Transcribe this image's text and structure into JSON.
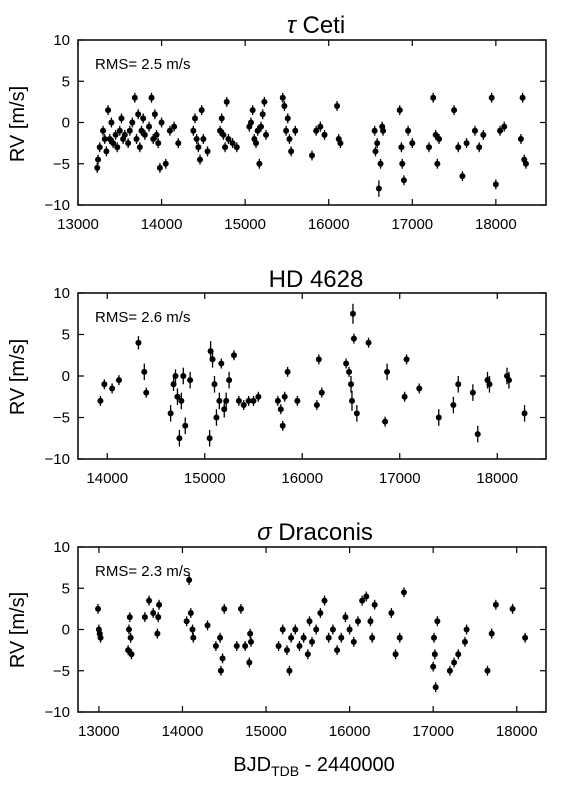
{
  "xlabel": {
    "main": "BJD",
    "sub": "TDB",
    "suffix": " - 2440000"
  },
  "chart_data": [
    {
      "type": "scatter",
      "title": {
        "symbol": "τ",
        "rest": " Ceti"
      },
      "annotation": "RMS= 2.5 m/s",
      "ylabel": "RV [m/s]",
      "xlim": [
        13000,
        18600
      ],
      "ylim": [
        -10,
        10
      ],
      "xticks": [
        13000,
        14000,
        15000,
        16000,
        17000,
        18000
      ],
      "yticks": [
        -10,
        -5,
        0,
        5,
        10
      ],
      "x": [
        13230,
        13240,
        13260,
        13300,
        13320,
        13340,
        13360,
        13380,
        13400,
        13420,
        13450,
        13470,
        13500,
        13520,
        13540,
        13560,
        13600,
        13620,
        13650,
        13680,
        13700,
        13720,
        13740,
        13760,
        13780,
        13800,
        13850,
        13880,
        13900,
        13920,
        13940,
        13960,
        13980,
        14000,
        14050,
        14100,
        14150,
        14200,
        14380,
        14400,
        14420,
        14440,
        14460,
        14480,
        14500,
        14550,
        14700,
        14720,
        14740,
        14760,
        14780,
        14800,
        14850,
        14900,
        15050,
        15070,
        15090,
        15110,
        15130,
        15150,
        15170,
        15190,
        15210,
        15230,
        15250,
        15450,
        15470,
        15490,
        15510,
        15530,
        15550,
        15600,
        15800,
        15850,
        15900,
        15950,
        16100,
        16120,
        16140,
        16550,
        16560,
        16580,
        16600,
        16620,
        16640,
        16650,
        16850,
        16870,
        16880,
        16900,
        16950,
        17000,
        17200,
        17250,
        17280,
        17300,
        17320,
        17500,
        17550,
        17600,
        17650,
        17750,
        17800,
        17850,
        17950,
        18000,
        18050,
        18100,
        18300,
        18320,
        18340,
        18360
      ],
      "y": [
        -5.5,
        -4.5,
        -3,
        -1,
        -2,
        -3.5,
        1.5,
        -2,
        0,
        -2.5,
        -1.5,
        -3,
        -1,
        0.5,
        -2,
        -1.5,
        -2.5,
        -1,
        0,
        3,
        -2,
        1,
        -3,
        -1,
        0.5,
        -1.5,
        -0.5,
        3,
        -2,
        1,
        -1.5,
        -2.5,
        -5.5,
        0,
        -5,
        -1,
        -0.5,
        -2.5,
        -1,
        0.5,
        -2,
        -3,
        -4.5,
        1.5,
        -2,
        -3.5,
        -1,
        0.5,
        -1.5,
        -3,
        2.5,
        -2,
        -2.5,
        -3,
        -0.5,
        0,
        1.5,
        -2,
        -2.5,
        -1,
        -5,
        -0.5,
        1,
        2.5,
        -1.5,
        3,
        2,
        -1,
        0.5,
        -2,
        -3.5,
        -1,
        -4,
        -1,
        -0.5,
        -1.5,
        2,
        -2,
        -2.5,
        -1,
        -3.5,
        -2.5,
        -8,
        -5,
        -0.5,
        -1,
        1.5,
        -3,
        -5,
        -7,
        -1,
        -2.5,
        -3,
        3,
        -1.5,
        -5,
        -2,
        1.5,
        -3,
        -6.5,
        -2.5,
        -1,
        -3,
        -1.5,
        3,
        -7.5,
        -1,
        -0.5,
        -2,
        3,
        -4.5,
        -5
      ],
      "yerr": [
        0.6,
        0.6,
        0.6,
        0.6,
        0.6,
        0.6,
        0.6,
        0.6,
        0.6,
        0.6,
        0.6,
        0.6,
        0.6,
        0.6,
        0.6,
        0.6,
        0.6,
        0.6,
        0.6,
        0.6,
        0.6,
        0.6,
        0.6,
        0.6,
        0.6,
        0.6,
        0.6,
        0.6,
        0.6,
        0.6,
        0.6,
        0.6,
        0.6,
        0.6,
        0.6,
        0.6,
        0.6,
        0.6,
        0.6,
        0.6,
        0.6,
        0.6,
        0.6,
        0.6,
        0.6,
        0.6,
        0.6,
        0.6,
        0.6,
        0.6,
        0.6,
        0.6,
        0.6,
        0.6,
        0.6,
        0.6,
        0.6,
        0.6,
        0.6,
        0.6,
        0.6,
        0.6,
        0.6,
        0.6,
        0.6,
        0.6,
        0.6,
        0.6,
        0.6,
        0.6,
        0.6,
        0.6,
        0.6,
        0.6,
        0.6,
        0.6,
        0.6,
        0.6,
        0.6,
        0.6,
        0.6,
        0.6,
        1.0,
        0.6,
        0.6,
        0.6,
        0.6,
        0.6,
        0.6,
        0.6,
        0.6,
        0.6,
        0.6,
        0.6,
        0.6,
        0.6,
        0.6,
        0.6,
        0.6,
        0.6,
        0.6,
        0.6,
        0.6,
        0.6,
        0.6,
        0.6,
        0.6,
        0.6,
        0.6,
        0.6,
        0.6,
        0.6
      ]
    },
    {
      "type": "scatter",
      "title": {
        "symbol": "",
        "rest": "HD 4628"
      },
      "annotation": "RMS= 2.6 m/s",
      "ylabel": "RV [m/s]",
      "xlim": [
        13700,
        18500
      ],
      "ylim": [
        -10,
        10
      ],
      "xticks": [
        14000,
        15000,
        16000,
        17000,
        18000
      ],
      "yticks": [
        -10,
        -5,
        0,
        5,
        10
      ],
      "x": [
        13930,
        13970,
        14050,
        14120,
        14320,
        14380,
        14400,
        14650,
        14680,
        14700,
        14720,
        14740,
        14760,
        14780,
        14800,
        14850,
        15050,
        15060,
        15080,
        15100,
        15120,
        15150,
        15170,
        15200,
        15220,
        15250,
        15300,
        15350,
        15400,
        15450,
        15500,
        15550,
        15750,
        15780,
        15800,
        15820,
        15850,
        15950,
        16150,
        16170,
        16200,
        16450,
        16480,
        16500,
        16510,
        16520,
        16530,
        16560,
        16680,
        16850,
        16870,
        17050,
        17070,
        17200,
        17400,
        17550,
        17600,
        17750,
        17800,
        17900,
        17920,
        18100,
        18120,
        18280
      ],
      "y": [
        -3,
        -1,
        -1.5,
        -0.5,
        4,
        0.5,
        -2,
        -4.5,
        -1,
        0,
        -2.5,
        -7.5,
        -3,
        0,
        -6,
        -0.5,
        -7.5,
        3,
        2,
        -1,
        -5,
        -3,
        1.5,
        -4,
        -3,
        -0.5,
        2.5,
        -3,
        -3.5,
        -3,
        -3,
        -2.5,
        -3,
        -4,
        -6,
        -2.5,
        0.5,
        -3,
        -3.5,
        2,
        -2,
        1.5,
        0.5,
        -1,
        -3,
        7.5,
        4.5,
        -4.5,
        4,
        -5.5,
        0.5,
        -2.5,
        2,
        -1.5,
        -5,
        -3.5,
        -1,
        -2,
        -7,
        -0.5,
        -1,
        0,
        -0.5,
        -4.5
      ],
      "yerr": [
        0.6,
        0.6,
        0.6,
        0.6,
        0.8,
        1.0,
        0.6,
        1.0,
        0.8,
        0.8,
        1.0,
        1.0,
        1.0,
        1.0,
        1.0,
        1.0,
        1.0,
        1.2,
        1.0,
        1.0,
        1.0,
        1.0,
        0.6,
        1.0,
        1.0,
        1.0,
        0.6,
        0.6,
        0.6,
        0.6,
        0.6,
        0.6,
        0.6,
        0.6,
        0.6,
        0.6,
        0.6,
        0.6,
        0.6,
        0.6,
        0.6,
        0.6,
        0.6,
        1.0,
        1.2,
        1.2,
        0.6,
        1.0,
        0.6,
        0.6,
        1.0,
        0.6,
        0.6,
        0.6,
        1.0,
        1.0,
        1.0,
        1.0,
        1.0,
        1.0,
        1.0,
        1.0,
        1.0,
        1.0
      ]
    },
    {
      "type": "scatter",
      "title": {
        "symbol": "σ",
        "rest": " Draconis"
      },
      "annotation": "RMS= 2.3 m/s",
      "ylabel": "RV [m/s]",
      "xlim": [
        12750,
        18350
      ],
      "ylim": [
        -10,
        10
      ],
      "xticks": [
        13000,
        14000,
        15000,
        16000,
        17000,
        18000
      ],
      "yticks": [
        -10,
        -5,
        0,
        5,
        10
      ],
      "x": [
        12990,
        13000,
        13010,
        13020,
        13350,
        13360,
        13370,
        13380,
        13390,
        13550,
        13600,
        13650,
        13700,
        13710,
        13720,
        14050,
        14080,
        14100,
        14120,
        14130,
        14300,
        14400,
        14450,
        14460,
        14480,
        14500,
        14650,
        14700,
        14750,
        14800,
        14810,
        14820,
        15150,
        15200,
        15250,
        15280,
        15300,
        15350,
        15400,
        15450,
        15500,
        15520,
        15550,
        15600,
        15650,
        15700,
        15750,
        15800,
        15850,
        15900,
        15950,
        16000,
        16050,
        16100,
        16150,
        16200,
        16250,
        16270,
        16300,
        16500,
        16550,
        16600,
        16650,
        17000,
        17010,
        17020,
        17030,
        17050,
        17200,
        17250,
        17300,
        17380,
        17400,
        17650,
        17700,
        17750,
        17950,
        18100
      ],
      "y": [
        2.5,
        0,
        -0.5,
        -1,
        -2.5,
        0,
        1.5,
        -1,
        -3,
        1.5,
        3.5,
        2,
        -0.5,
        1.5,
        3,
        1,
        6,
        2,
        0,
        -1,
        0.5,
        -2,
        -1,
        -5,
        -3.5,
        2.5,
        -2,
        2.5,
        -2,
        -4,
        -0.5,
        -1.5,
        -2,
        0,
        -2.5,
        -5,
        -1,
        0,
        -2,
        -1,
        -3,
        1,
        -1.5,
        0,
        2,
        3.5,
        -1,
        0,
        -2.5,
        -1,
        1.5,
        0,
        -1.5,
        1,
        3.5,
        4,
        1,
        -1,
        3,
        2,
        -3,
        -1,
        4.5,
        -4.5,
        -1,
        -3,
        -7,
        1,
        -5,
        -4,
        -3,
        -1.5,
        0,
        -5,
        -0.5,
        3,
        2.5,
        -1
      ],
      "yerr": [
        0.6,
        0.6,
        0.6,
        0.6,
        0.6,
        0.6,
        0.6,
        0.6,
        0.6,
        0.6,
        0.6,
        0.6,
        0.6,
        0.6,
        0.6,
        0.6,
        0.6,
        0.6,
        0.6,
        0.6,
        0.6,
        0.6,
        0.6,
        0.6,
        0.6,
        0.6,
        0.6,
        0.6,
        0.6,
        0.6,
        0.6,
        0.6,
        0.6,
        0.6,
        0.6,
        0.6,
        0.6,
        0.6,
        0.6,
        0.6,
        0.6,
        0.6,
        0.6,
        0.6,
        0.6,
        0.6,
        0.6,
        0.6,
        0.6,
        0.6,
        0.6,
        0.6,
        0.6,
        0.6,
        0.6,
        0.6,
        0.6,
        0.6,
        0.6,
        0.6,
        0.6,
        0.6,
        0.6,
        0.6,
        0.6,
        0.6,
        0.6,
        0.6,
        0.6,
        0.6,
        0.6,
        0.6,
        0.6,
        0.6,
        0.6,
        0.6,
        0.6,
        0.6
      ]
    }
  ]
}
